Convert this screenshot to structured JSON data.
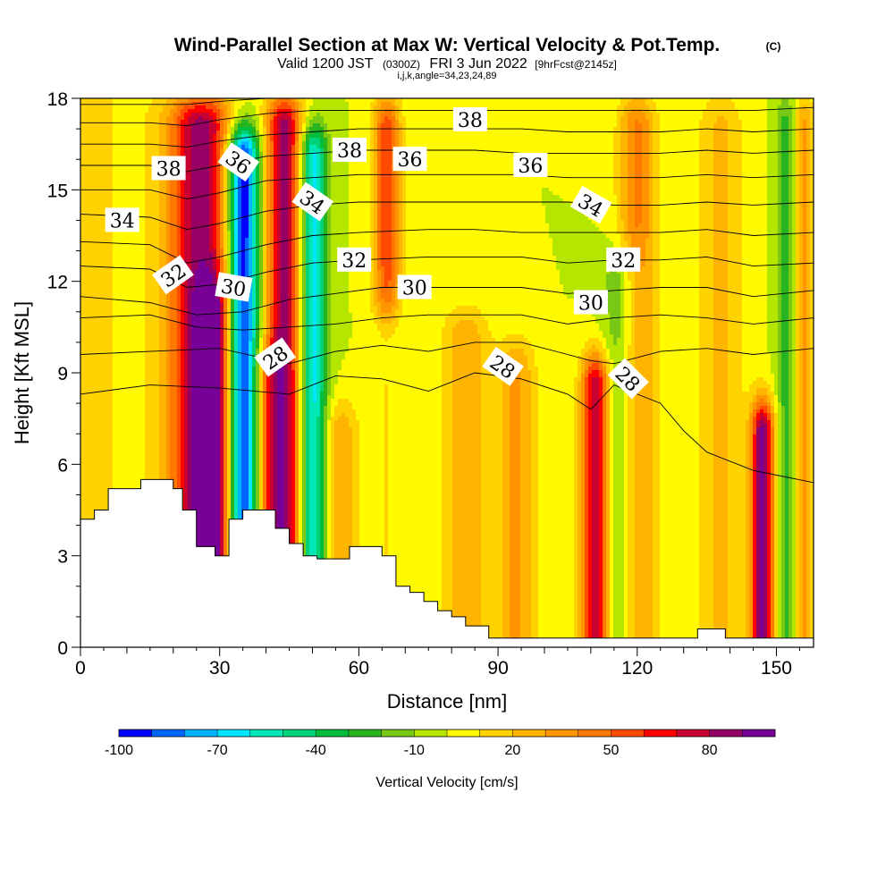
{
  "chart_data": {
    "type": "heatmap",
    "title": "Wind-Parallel Section at Max W: Vertical Velocity & Pot.Temp.",
    "copyright": "(C)",
    "subtitle": {
      "valid": "Valid 1200 JST",
      "utc": "(0300Z)",
      "date": "FRI 3 Jun 2022",
      "forecast": "[9hrFcst@2145z]"
    },
    "grid_info": "i,j,k,angle=34,23,24,89",
    "xlabel": "Distance [nm]",
    "ylabel": "Height [Kft MSL]",
    "xlim": [
      0,
      158
    ],
    "ylim": [
      0,
      18
    ],
    "x_ticks": [
      0,
      30,
      60,
      90,
      120,
      150
    ],
    "y_ticks": [
      0,
      3,
      6,
      9,
      12,
      15,
      18
    ],
    "colorbar": {
      "label": "Vertical Velocity [cm/s]",
      "min": -100,
      "max": 100,
      "step": 10,
      "tick_labels": [
        "-100",
        "-70",
        "-40",
        "-10",
        "20",
        "50",
        "80"
      ],
      "tick_values": [
        -100,
        -70,
        -40,
        -10,
        20,
        50,
        80
      ],
      "colors": [
        "#0000ff",
        "#0066ff",
        "#00b4ff",
        "#00e6ff",
        "#00e6b4",
        "#00d278",
        "#00be3c",
        "#28b41e",
        "#78c814",
        "#b4e600",
        "#fffa00",
        "#ffd200",
        "#ffb400",
        "#ff9600",
        "#ff7800",
        "#ff4b00",
        "#ff0000",
        "#c80032",
        "#960064",
        "#780096"
      ]
    },
    "w_columns": [
      {
        "x": 6,
        "w": 18,
        "amp": 12,
        "ztop": 18
      },
      {
        "x": 15,
        "w": 10,
        "amp": -4,
        "ztop": 18
      },
      {
        "x": 26,
        "w": 7,
        "amp": 85,
        "ztop": 17
      },
      {
        "x": 29,
        "w": 4,
        "amp": 40,
        "ztop": 11
      },
      {
        "x": 35,
        "w": 3.5,
        "amp": -110,
        "ztop": 16
      },
      {
        "x": 40,
        "w": 3.5,
        "amp": 30,
        "ztop": 9
      },
      {
        "x": 44,
        "w": 4,
        "amp": 85,
        "ztop": 17
      },
      {
        "x": 50,
        "w": 3,
        "amp": -70,
        "ztop": 16
      },
      {
        "x": 56,
        "w": 4,
        "amp": 28,
        "ztop": 7
      },
      {
        "x": 66,
        "w": 3,
        "amp": -45,
        "ztop": 10
      },
      {
        "x": 66,
        "w": 3,
        "amp": 55,
        "ztop": 17
      },
      {
        "x": 83,
        "w": 5,
        "amp": 30,
        "ztop": 10
      },
      {
        "x": 94,
        "w": 4,
        "amp": 32,
        "ztop": 9
      },
      {
        "x": 111,
        "w": 3,
        "amp": 82,
        "ztop": 8.5
      },
      {
        "x": 117,
        "w": 4,
        "amp": -28,
        "ztop": 12
      },
      {
        "x": 120,
        "w": 4,
        "amp": 42,
        "ztop": 17
      },
      {
        "x": 138,
        "w": 5,
        "amp": 22,
        "ztop": 17
      },
      {
        "x": 147,
        "w": 2.5,
        "amp": 92,
        "ztop": 7
      },
      {
        "x": 152,
        "w": 2,
        "amp": -24,
        "ztop": 17
      },
      {
        "x": 156,
        "w": 2,
        "amp": 32,
        "ztop": 17
      }
    ],
    "terrain_steps": [
      [
        0,
        4.2
      ],
      [
        3,
        4.5
      ],
      [
        6,
        5.2
      ],
      [
        13,
        5.5
      ],
      [
        20,
        5.2
      ],
      [
        22,
        4.5
      ],
      [
        25,
        3.3
      ],
      [
        29,
        3.0
      ],
      [
        32,
        4.2
      ],
      [
        35,
        4.5
      ],
      [
        42,
        3.9
      ],
      [
        45,
        3.4
      ],
      [
        48,
        3.0
      ],
      [
        51,
        2.9
      ],
      [
        58,
        3.3
      ],
      [
        65,
        3.0
      ],
      [
        68,
        2.0
      ],
      [
        71,
        1.8
      ],
      [
        74,
        1.5
      ],
      [
        77,
        1.2
      ],
      [
        80,
        1.0
      ],
      [
        83,
        0.7
      ],
      [
        88,
        0.3
      ],
      [
        95,
        0.3
      ],
      [
        100,
        0.3
      ],
      [
        130,
        0.3
      ],
      [
        133,
        0.6
      ],
      [
        139,
        0.3
      ],
      [
        148,
        0.3
      ],
      [
        158,
        0.3
      ]
    ],
    "theta_levels": [
      28,
      29,
      30,
      31,
      32,
      33,
      34,
      35,
      36,
      37,
      38,
      39,
      40,
      41
    ],
    "theta_lines": [
      {
        "theta": 28,
        "points": [
          [
            0,
            8.3
          ],
          [
            15,
            8.6
          ],
          [
            30,
            8.5
          ],
          [
            45,
            8.3
          ],
          [
            55,
            8.9
          ],
          [
            65,
            8.8
          ],
          [
            75,
            8.4
          ],
          [
            85,
            9.0
          ],
          [
            95,
            8.8
          ],
          [
            105,
            8.3
          ],
          [
            110,
            7.8
          ],
          [
            115,
            8.6
          ],
          [
            125,
            8.0
          ],
          [
            130,
            7.1
          ],
          [
            135,
            6.4
          ],
          [
            145,
            5.8
          ],
          [
            158,
            5.4
          ]
        ]
      },
      {
        "theta": 29,
        "points": [
          [
            0,
            9.6
          ],
          [
            15,
            9.7
          ],
          [
            30,
            9.8
          ],
          [
            45,
            9.3
          ],
          [
            55,
            9.7
          ],
          [
            65,
            9.9
          ],
          [
            75,
            9.7
          ],
          [
            85,
            10.0
          ],
          [
            95,
            10.0
          ],
          [
            105,
            9.6
          ],
          [
            110,
            9.4
          ],
          [
            115,
            9.3
          ],
          [
            125,
            9.7
          ],
          [
            135,
            9.8
          ],
          [
            145,
            9.6
          ],
          [
            158,
            9.8
          ]
        ]
      },
      {
        "theta": 30,
        "points": [
          [
            0,
            10.8
          ],
          [
            15,
            10.9
          ],
          [
            25,
            10.5
          ],
          [
            35,
            10.4
          ],
          [
            45,
            10.5
          ],
          [
            55,
            10.6
          ],
          [
            65,
            10.8
          ],
          [
            75,
            10.9
          ],
          [
            85,
            10.9
          ],
          [
            95,
            10.9
          ],
          [
            105,
            10.6
          ],
          [
            115,
            10.8
          ],
          [
            125,
            10.9
          ],
          [
            135,
            10.8
          ],
          [
            145,
            10.6
          ],
          [
            158,
            10.8
          ]
        ]
      },
      {
        "theta": 31,
        "points": [
          [
            0,
            11.5
          ],
          [
            15,
            11.3
          ],
          [
            25,
            10.9
          ],
          [
            35,
            11.0
          ],
          [
            45,
            11.4
          ],
          [
            55,
            11.6
          ],
          [
            65,
            11.8
          ],
          [
            75,
            11.8
          ],
          [
            85,
            11.8
          ],
          [
            95,
            11.8
          ],
          [
            105,
            11.6
          ],
          [
            115,
            11.7
          ],
          [
            125,
            11.8
          ],
          [
            135,
            11.8
          ],
          [
            145,
            11.5
          ],
          [
            158,
            11.7
          ]
        ]
      },
      {
        "theta": 32,
        "points": [
          [
            0,
            12.5
          ],
          [
            15,
            12.4
          ],
          [
            23,
            11.8
          ],
          [
            30,
            11.9
          ],
          [
            40,
            12.3
          ],
          [
            50,
            12.6
          ],
          [
            60,
            12.7
          ],
          [
            75,
            12.8
          ],
          [
            85,
            12.8
          ],
          [
            95,
            12.8
          ],
          [
            105,
            12.6
          ],
          [
            115,
            12.7
          ],
          [
            125,
            12.7
          ],
          [
            135,
            12.8
          ],
          [
            145,
            12.5
          ],
          [
            158,
            12.6
          ]
        ]
      },
      {
        "theta": 33,
        "points": [
          [
            0,
            13.3
          ],
          [
            15,
            13.2
          ],
          [
            23,
            12.6
          ],
          [
            30,
            12.8
          ],
          [
            40,
            13.2
          ],
          [
            50,
            13.5
          ],
          [
            60,
            13.6
          ],
          [
            75,
            13.7
          ],
          [
            85,
            13.7
          ],
          [
            95,
            13.6
          ],
          [
            105,
            13.6
          ],
          [
            115,
            13.6
          ],
          [
            125,
            13.6
          ],
          [
            135,
            13.7
          ],
          [
            145,
            13.5
          ],
          [
            158,
            13.6
          ]
        ]
      },
      {
        "theta": 34,
        "points": [
          [
            0,
            14.2
          ],
          [
            15,
            14.1
          ],
          [
            23,
            13.7
          ],
          [
            30,
            13.9
          ],
          [
            40,
            14.3
          ],
          [
            50,
            14.5
          ],
          [
            60,
            14.6
          ],
          [
            75,
            14.6
          ],
          [
            85,
            14.6
          ],
          [
            95,
            14.6
          ],
          [
            105,
            14.6
          ],
          [
            115,
            14.5
          ],
          [
            125,
            14.5
          ],
          [
            135,
            14.6
          ],
          [
            145,
            14.5
          ],
          [
            158,
            14.6
          ]
        ]
      },
      {
        "theta": 35,
        "points": [
          [
            0,
            15.0
          ],
          [
            15,
            15.0
          ],
          [
            23,
            14.7
          ],
          [
            30,
            14.9
          ],
          [
            40,
            15.3
          ],
          [
            50,
            15.4
          ],
          [
            60,
            15.5
          ],
          [
            75,
            15.5
          ],
          [
            85,
            15.5
          ],
          [
            95,
            15.5
          ],
          [
            105,
            15.4
          ],
          [
            115,
            15.4
          ],
          [
            125,
            15.4
          ],
          [
            135,
            15.5
          ],
          [
            145,
            15.4
          ],
          [
            158,
            15.5
          ]
        ]
      },
      {
        "theta": 36,
        "points": [
          [
            0,
            15.8
          ],
          [
            15,
            15.8
          ],
          [
            23,
            15.6
          ],
          [
            30,
            15.8
          ],
          [
            40,
            16.1
          ],
          [
            50,
            16.2
          ],
          [
            60,
            16.3
          ],
          [
            75,
            16.3
          ],
          [
            85,
            16.3
          ],
          [
            95,
            16.2
          ],
          [
            105,
            16.2
          ],
          [
            115,
            16.2
          ],
          [
            125,
            16.2
          ],
          [
            135,
            16.3
          ],
          [
            145,
            16.2
          ],
          [
            158,
            16.3
          ]
        ]
      },
      {
        "theta": 37,
        "points": [
          [
            0,
            16.5
          ],
          [
            15,
            16.5
          ],
          [
            23,
            16.4
          ],
          [
            30,
            16.6
          ],
          [
            40,
            16.8
          ],
          [
            50,
            16.9
          ],
          [
            60,
            17.0
          ],
          [
            75,
            17.0
          ],
          [
            85,
            17.0
          ],
          [
            95,
            17.0
          ],
          [
            105,
            16.9
          ],
          [
            115,
            16.9
          ],
          [
            125,
            16.9
          ],
          [
            135,
            17.0
          ],
          [
            145,
            16.9
          ],
          [
            158,
            17.0
          ]
        ]
      },
      {
        "theta": 38,
        "points": [
          [
            0,
            17.2
          ],
          [
            15,
            17.2
          ],
          [
            23,
            17.1
          ],
          [
            30,
            17.3
          ],
          [
            40,
            17.5
          ],
          [
            50,
            17.6
          ],
          [
            60,
            17.6
          ],
          [
            75,
            17.6
          ],
          [
            85,
            17.6
          ],
          [
            95,
            17.6
          ],
          [
            105,
            17.6
          ],
          [
            115,
            17.6
          ],
          [
            125,
            17.6
          ],
          [
            135,
            17.6
          ],
          [
            145,
            17.6
          ],
          [
            158,
            17.7
          ]
        ]
      },
      {
        "theta": 39,
        "points": [
          [
            0,
            17.8
          ],
          [
            15,
            17.8
          ],
          [
            23,
            17.8
          ],
          [
            30,
            17.9
          ],
          [
            40,
            18.0
          ],
          [
            50,
            18.1
          ],
          [
            60,
            18.1
          ],
          [
            75,
            18.1
          ],
          [
            85,
            18.1
          ],
          [
            95,
            18.1
          ],
          [
            105,
            18.1
          ],
          [
            115,
            18.1
          ],
          [
            125,
            18.1
          ],
          [
            135,
            18.1
          ],
          [
            145,
            18.1
          ],
          [
            158,
            18.1
          ]
        ]
      }
    ],
    "theta_labels": [
      {
        "text": "38",
        "x": 19,
        "z": 15.7,
        "angle": 0
      },
      {
        "text": "34",
        "x": 9,
        "z": 14.0,
        "angle": 0
      },
      {
        "text": "36",
        "x": 34,
        "z": 15.9,
        "angle": 35
      },
      {
        "text": "32",
        "x": 20,
        "z": 12.2,
        "angle": -35
      },
      {
        "text": "30",
        "x": 33,
        "z": 11.8,
        "angle": 10
      },
      {
        "text": "34",
        "x": 50,
        "z": 14.6,
        "angle": 35
      },
      {
        "text": "38",
        "x": 58,
        "z": 16.3,
        "angle": 0
      },
      {
        "text": "36",
        "x": 71,
        "z": 16.0,
        "angle": 0
      },
      {
        "text": "32",
        "x": 59,
        "z": 12.7,
        "angle": 0
      },
      {
        "text": "28",
        "x": 42,
        "z": 9.5,
        "angle": -35
      },
      {
        "text": "30",
        "x": 72,
        "z": 11.8,
        "angle": 0
      },
      {
        "text": "38",
        "x": 84,
        "z": 17.3,
        "angle": 0
      },
      {
        "text": "36",
        "x": 97,
        "z": 15.8,
        "angle": 0
      },
      {
        "text": "28",
        "x": 91,
        "z": 9.2,
        "angle": 35
      },
      {
        "text": "34",
        "x": 110,
        "z": 14.5,
        "angle": 30
      },
      {
        "text": "32",
        "x": 117,
        "z": 12.7,
        "angle": 0
      },
      {
        "text": "30",
        "x": 110,
        "z": 11.3,
        "angle": 0
      },
      {
        "text": "28",
        "x": 118,
        "z": 8.8,
        "angle": 45
      }
    ]
  }
}
